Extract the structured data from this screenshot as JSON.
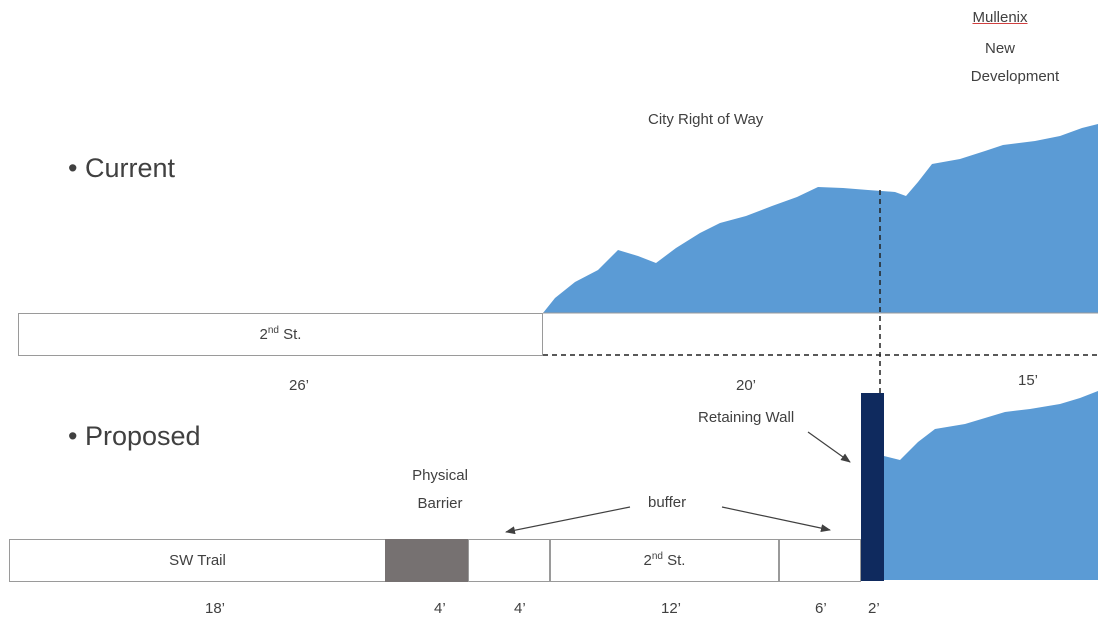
{
  "colors": {
    "terrain": "#5b9bd5",
    "wall": "#0f2a5e",
    "barrier": "#767171",
    "box_border": "#9a9a9a",
    "text": "#404040"
  },
  "labels": {
    "mullenix": "Mullenix",
    "new": "New",
    "development": "Development",
    "city_row": "City Right of Way",
    "current": "Current",
    "proposed": "Proposed",
    "retaining_wall": "Retaining Wall",
    "physical": "Physical",
    "barrier": "Barrier",
    "buffer": "buffer",
    "bullet": "•"
  },
  "current_section": {
    "street": {
      "base": "2",
      "sup": "nd",
      "suffix": " St."
    },
    "dims": {
      "street": "26’",
      "middle": "20’",
      "right": "15’"
    }
  },
  "proposed_section": {
    "trail": "SW Trail",
    "street": {
      "base": "2",
      "sup": "nd",
      "suffix": " St."
    },
    "dims": [
      "18’",
      "4’",
      "4’",
      "12’",
      "6’",
      "2’"
    ]
  }
}
